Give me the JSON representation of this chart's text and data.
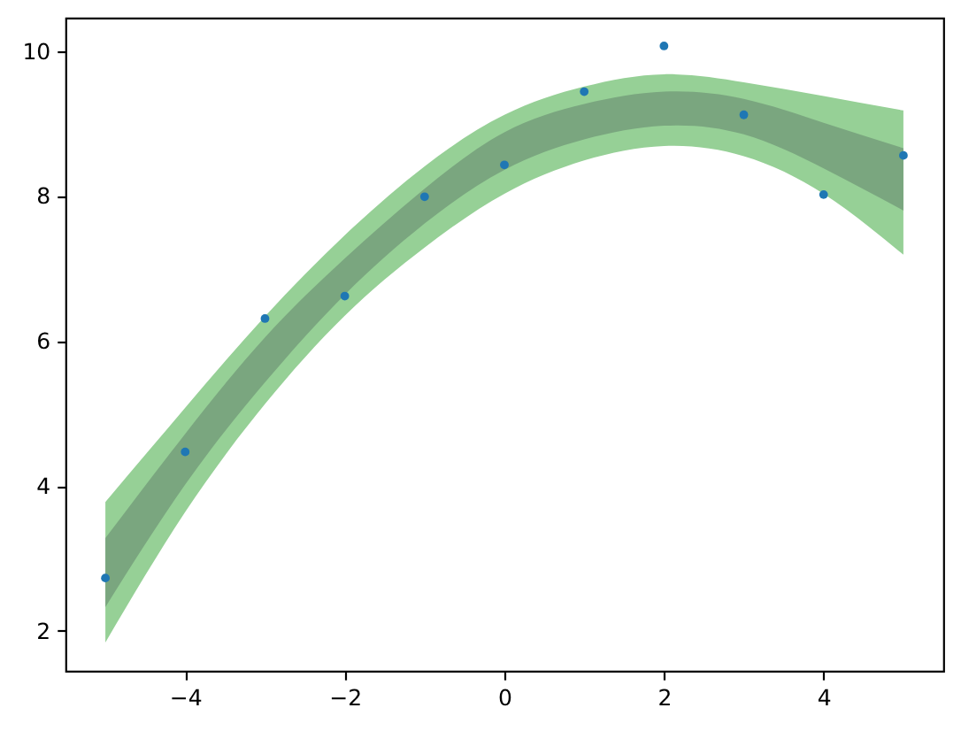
{
  "chart_data": {
    "type": "scatter",
    "x": [
      -5,
      -4,
      -3,
      -2,
      -1,
      0,
      1,
      2,
      3,
      4,
      5
    ],
    "series": [
      {
        "type": "line",
        "color": "#96d096",
        "values": [
          null,
          null,
          null,
          null,
          null,
          null,
          null,
          null,
          null,
          null,
          null
        ],
        "lower": [
          1.84,
          3.64,
          5.13,
          6.35,
          7.29,
          8.03,
          8.49,
          8.69,
          8.55,
          8.03,
          7.19
        ],
        "upper": [
          3.78,
          5.08,
          6.34,
          7.46,
          8.41,
          9.12,
          9.51,
          9.68,
          9.57,
          9.38,
          9.18
        ]
      },
      {
        "type": "line",
        "color": "#7aa67f",
        "values": [
          null,
          null,
          null,
          null,
          null,
          null,
          null,
          null,
          null,
          null,
          null
        ],
        "lower": [
          2.33,
          4.02,
          5.43,
          6.64,
          7.62,
          8.36,
          8.78,
          8.97,
          8.85,
          8.38,
          7.8
        ],
        "upper": [
          3.28,
          4.72,
          6.05,
          7.14,
          8.1,
          8.88,
          9.27,
          9.44,
          9.34,
          9.01,
          8.66
        ]
      },
      {
        "color": "#1f77b4",
        "marker": "circle",
        "values": [
          2.73,
          4.47,
          6.31,
          6.62,
          7.99,
          8.43,
          9.44,
          10.07,
          9.12,
          8.02,
          8.56
        ]
      }
    ],
    "xlim": [
      -5.5,
      5.5
    ],
    "xticks": [
      {
        "value": -4,
        "label": "−4"
      },
      {
        "value": -2,
        "label": "−2"
      },
      0,
      2,
      4
    ],
    "ylim": [
      1.45,
      10.46
    ],
    "yticks": [
      2,
      4,
      6,
      8,
      10
    ],
    "grid": false
  }
}
